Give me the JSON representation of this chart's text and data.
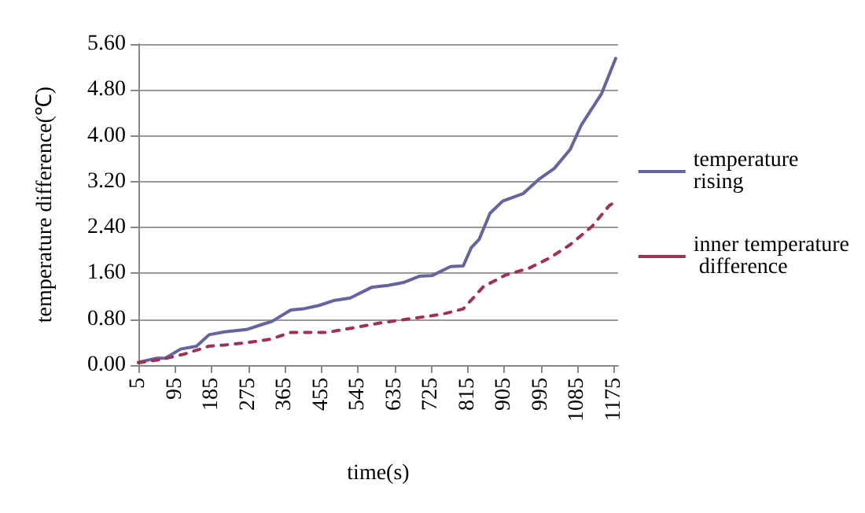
{
  "chart_data": {
    "type": "line",
    "xlabel": "time(s)",
    "ylabel": "temperature difference(℃)",
    "xlim": [
      5,
      1185
    ],
    "xticks": [
      5,
      95,
      185,
      275,
      365,
      455,
      545,
      635,
      725,
      815,
      905,
      995,
      1085,
      1175
    ],
    "ylim": [
      0,
      5.6
    ],
    "yticks": [
      {
        "value": 0,
        "label": "0.00"
      },
      {
        "value": 0.8,
        "label": "0.80"
      },
      {
        "value": 1.6,
        "label": "1.60"
      },
      {
        "value": 2.4,
        "label": "2.40"
      },
      {
        "value": 3.2,
        "label": "3.20"
      },
      {
        "value": 4,
        "label": "4.00"
      },
      {
        "value": 4.8,
        "label": "4.80"
      },
      {
        "value": 5.6,
        "label": "5.60"
      }
    ],
    "grid": "y",
    "legend": "right",
    "marker": "none",
    "series": [
      {
        "name": "temperature rising",
        "color": "#6464a0",
        "line_style": "solid",
        "x": [
          5,
          51,
          71,
          109,
          148,
          179,
          217,
          271,
          310,
          333,
          380,
          410,
          449,
          488,
          526,
          580,
          619,
          657,
          696,
          727,
          773,
          804,
          824,
          843,
          870,
          901,
          951,
          990,
          1028,
          1067,
          1094,
          1144,
          1179
        ],
        "values": [
          0.05,
          0.12,
          0.12,
          0.28,
          0.33,
          0.53,
          0.58,
          0.62,
          0.71,
          0.76,
          0.96,
          0.98,
          1.04,
          1.13,
          1.17,
          1.36,
          1.39,
          1.44,
          1.55,
          1.56,
          1.72,
          1.73,
          2.05,
          2.19,
          2.65,
          2.86,
          2.99,
          3.24,
          3.43,
          3.76,
          4.18,
          4.73,
          5.35
        ]
      },
      {
        "name": "inner temperature difference",
        "color": "#a0305a",
        "line_style": "dashed",
        "x": [
          5,
          63,
          117,
          179,
          217,
          271,
          329,
          380,
          468,
          542,
          604,
          696,
          754,
          804,
          854,
          908,
          966,
          1017,
          1067,
          1121,
          1163,
          1178
        ],
        "values": [
          0.04,
          0.1,
          0.19,
          0.33,
          0.35,
          0.39,
          0.45,
          0.57,
          0.57,
          0.66,
          0.74,
          0.83,
          0.89,
          0.98,
          1.37,
          1.57,
          1.69,
          1.87,
          2.1,
          2.42,
          2.78,
          2.85
        ]
      }
    ]
  }
}
